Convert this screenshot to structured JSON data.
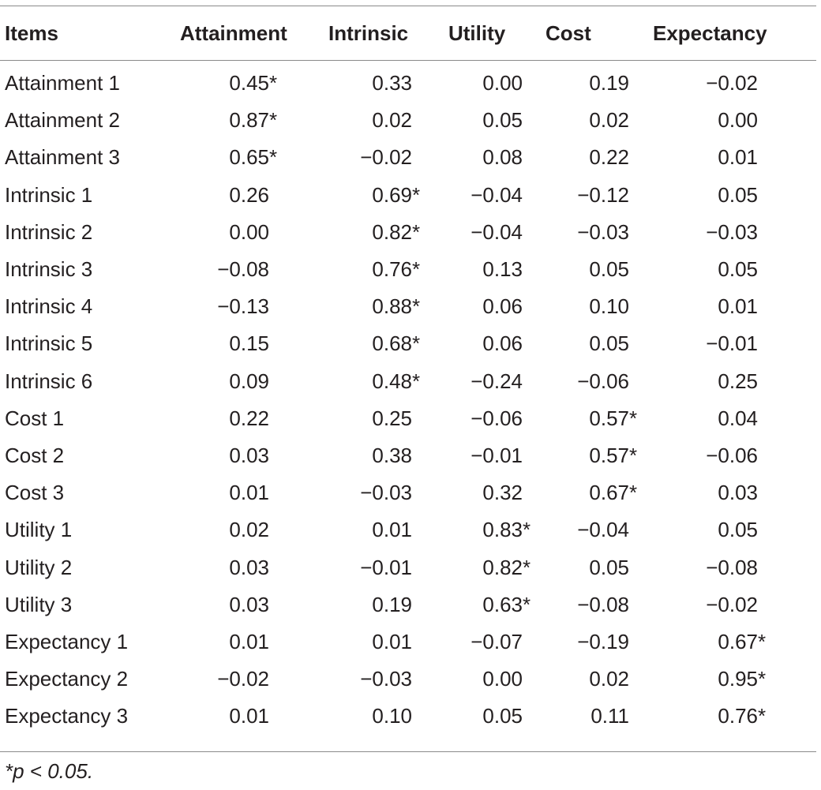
{
  "table": {
    "headers": [
      "Items",
      "Attainment",
      "Intrinsic",
      "Utility",
      "Cost",
      "Expectancy"
    ],
    "rows": [
      {
        "item": "Attainment 1",
        "cells": [
          [
            "0.45",
            "*"
          ],
          [
            "0.33",
            ""
          ],
          [
            "0.00",
            ""
          ],
          [
            "0.19",
            ""
          ],
          [
            "−0.02",
            ""
          ]
        ]
      },
      {
        "item": "Attainment 2",
        "cells": [
          [
            "0.87",
            "*"
          ],
          [
            "0.02",
            ""
          ],
          [
            "0.05",
            ""
          ],
          [
            "0.02",
            ""
          ],
          [
            "0.00",
            ""
          ]
        ]
      },
      {
        "item": "Attainment 3",
        "cells": [
          [
            "0.65",
            "*"
          ],
          [
            "−0.02",
            ""
          ],
          [
            "0.08",
            ""
          ],
          [
            "0.22",
            ""
          ],
          [
            "0.01",
            ""
          ]
        ]
      },
      {
        "item": "Intrinsic 1",
        "cells": [
          [
            "0.26",
            ""
          ],
          [
            "0.69",
            "*"
          ],
          [
            "−0.04",
            ""
          ],
          [
            "−0.12",
            ""
          ],
          [
            "0.05",
            ""
          ]
        ]
      },
      {
        "item": "Intrinsic 2",
        "cells": [
          [
            "0.00",
            ""
          ],
          [
            "0.82",
            "*"
          ],
          [
            "−0.04",
            ""
          ],
          [
            "−0.03",
            ""
          ],
          [
            "−0.03",
            ""
          ]
        ]
      },
      {
        "item": "Intrinsic 3",
        "cells": [
          [
            "−0.08",
            ""
          ],
          [
            "0.76",
            "*"
          ],
          [
            "0.13",
            ""
          ],
          [
            "0.05",
            ""
          ],
          [
            "0.05",
            ""
          ]
        ]
      },
      {
        "item": "Intrinsic 4",
        "cells": [
          [
            "−0.13",
            ""
          ],
          [
            "0.88",
            "*"
          ],
          [
            "0.06",
            ""
          ],
          [
            "0.10",
            ""
          ],
          [
            "0.01",
            ""
          ]
        ]
      },
      {
        "item": "Intrinsic 5",
        "cells": [
          [
            "0.15",
            ""
          ],
          [
            "0.68",
            "*"
          ],
          [
            "0.06",
            ""
          ],
          [
            "0.05",
            ""
          ],
          [
            "−0.01",
            ""
          ]
        ]
      },
      {
        "item": "Intrinsic 6",
        "cells": [
          [
            "0.09",
            ""
          ],
          [
            "0.48",
            "*"
          ],
          [
            "−0.24",
            ""
          ],
          [
            "−0.06",
            ""
          ],
          [
            "0.25",
            ""
          ]
        ]
      },
      {
        "item": "Cost 1",
        "cells": [
          [
            "0.22",
            ""
          ],
          [
            "0.25",
            ""
          ],
          [
            "−0.06",
            ""
          ],
          [
            "0.57",
            "*"
          ],
          [
            "0.04",
            ""
          ]
        ]
      },
      {
        "item": "Cost 2",
        "cells": [
          [
            "0.03",
            ""
          ],
          [
            "0.38",
            ""
          ],
          [
            "−0.01",
            ""
          ],
          [
            "0.57",
            "*"
          ],
          [
            "−0.06",
            ""
          ]
        ]
      },
      {
        "item": "Cost 3",
        "cells": [
          [
            "0.01",
            ""
          ],
          [
            "−0.03",
            ""
          ],
          [
            "0.32",
            ""
          ],
          [
            "0.67",
            "*"
          ],
          [
            "0.03",
            ""
          ]
        ]
      },
      {
        "item": "Utility 1",
        "cells": [
          [
            "0.02",
            ""
          ],
          [
            "0.01",
            ""
          ],
          [
            "0.83",
            "*"
          ],
          [
            "−0.04",
            ""
          ],
          [
            "0.05",
            ""
          ]
        ]
      },
      {
        "item": "Utility 2",
        "cells": [
          [
            "0.03",
            ""
          ],
          [
            "−0.01",
            ""
          ],
          [
            "0.82",
            "*"
          ],
          [
            "0.05",
            ""
          ],
          [
            "−0.08",
            ""
          ]
        ]
      },
      {
        "item": "Utility 3",
        "cells": [
          [
            "0.03",
            ""
          ],
          [
            "0.19",
            ""
          ],
          [
            "0.63",
            "*"
          ],
          [
            "−0.08",
            ""
          ],
          [
            "−0.02",
            ""
          ]
        ]
      },
      {
        "item": "Expectancy 1",
        "cells": [
          [
            "0.01",
            ""
          ],
          [
            "0.01",
            ""
          ],
          [
            "−0.07",
            ""
          ],
          [
            "−0.19",
            ""
          ],
          [
            "0.67",
            "*"
          ]
        ]
      },
      {
        "item": "Expectancy 2",
        "cells": [
          [
            "−0.02",
            ""
          ],
          [
            "−0.03",
            ""
          ],
          [
            "0.00",
            ""
          ],
          [
            "0.02",
            ""
          ],
          [
            "0.95",
            "*"
          ]
        ]
      },
      {
        "item": "Expectancy 3",
        "cells": [
          [
            "0.01",
            ""
          ],
          [
            "0.10",
            ""
          ],
          [
            "0.05",
            ""
          ],
          [
            "0.11",
            ""
          ],
          [
            "0.76",
            "*"
          ]
        ]
      }
    ]
  },
  "footnote": "*p < 0.05."
}
